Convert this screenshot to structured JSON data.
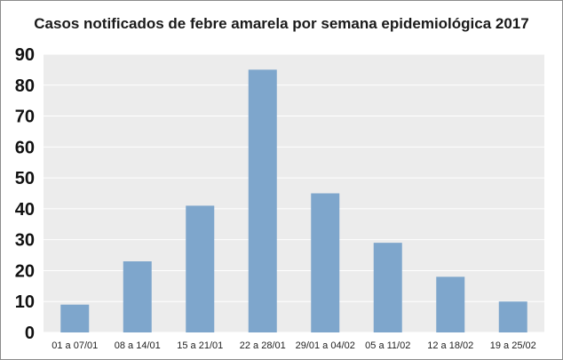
{
  "chart_data": {
    "type": "bar",
    "title": "Casos notificados de febre amarela por semana epidemiológica 2017",
    "xlabel": "",
    "ylabel": "",
    "categories": [
      "01 a 07/01",
      "08 a 14/01",
      "15 a 21/01",
      "22 a 28/01",
      "29/01 a 04/02",
      "05 a 11/02",
      "12 a 18/02",
      "19 a 25/02"
    ],
    "values": [
      9,
      23,
      41,
      85,
      45,
      29,
      18,
      10
    ],
    "ylim": [
      0,
      90
    ],
    "yticks": [
      0,
      10,
      20,
      30,
      40,
      50,
      60,
      70,
      80,
      90
    ],
    "grid": true,
    "legend": "none",
    "colors": {
      "bar": "#7ea6cc",
      "plot_background": "#ececec",
      "gridline": "#ffffff"
    }
  }
}
